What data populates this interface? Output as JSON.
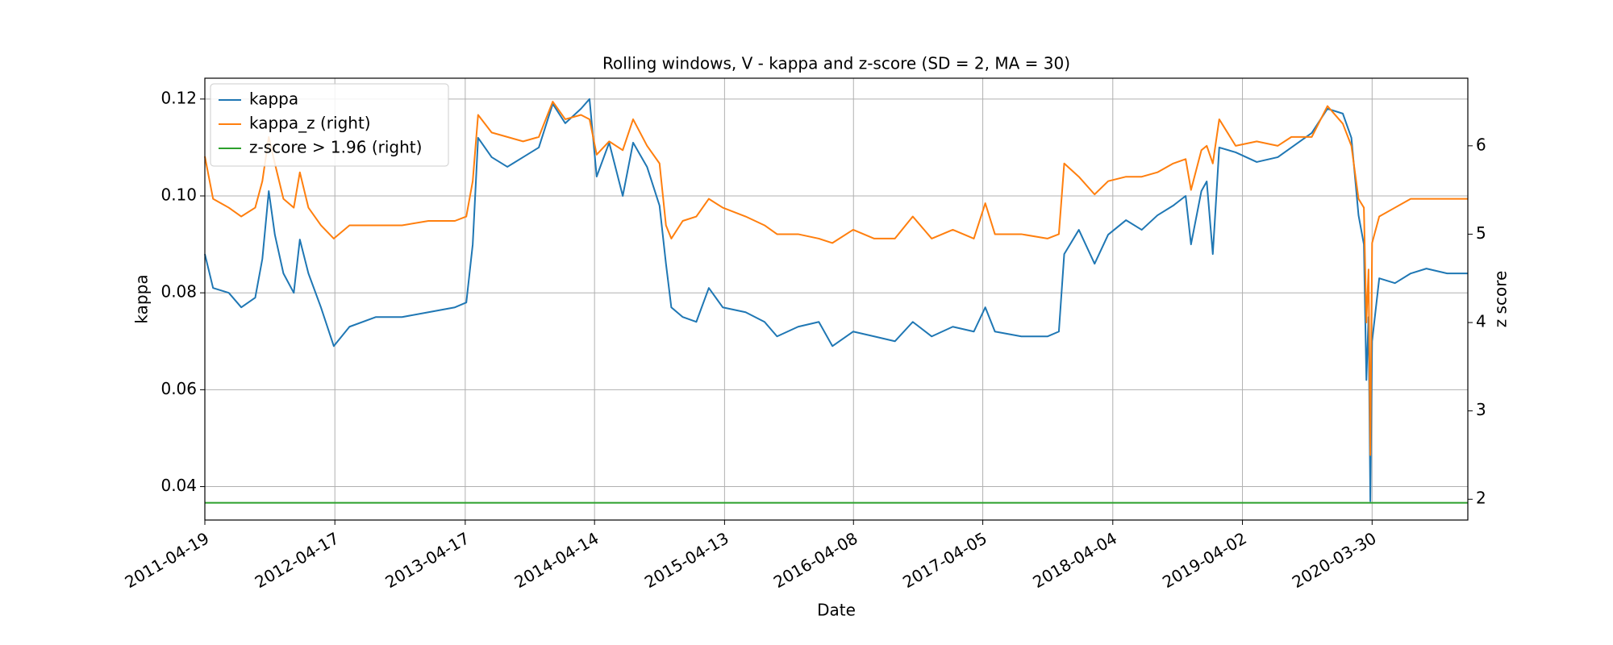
{
  "chart_data": {
    "type": "line",
    "title": "Rolling windows, V - kappa and z-score (SD = 2, MA = 30)",
    "x_label": "Date",
    "y_label": "kappa",
    "y2_label": "z score",
    "x": [
      "2011-04-19",
      "2011-05-12",
      "2011-06-25",
      "2011-07-30",
      "2011-09-07",
      "2011-09-27",
      "2011-10-15",
      "2011-11-01",
      "2011-11-25",
      "2011-12-24",
      "2012-01-10",
      "2012-02-03",
      "2012-03-09",
      "2012-04-14",
      "2012-05-28",
      "2012-08-10",
      "2012-10-22",
      "2013-01-04",
      "2013-03-19",
      "2013-04-20",
      "2013-05-08",
      "2013-05-23",
      "2013-06-30",
      "2013-08-13",
      "2013-09-26",
      "2013-11-09",
      "2013-12-18",
      "2014-01-22",
      "2014-03-07",
      "2014-03-31",
      "2014-04-20",
      "2014-05-25",
      "2014-07-02",
      "2014-07-31",
      "2014-09-08",
      "2014-10-13",
      "2014-10-31",
      "2014-11-15",
      "2014-12-17",
      "2015-01-24",
      "2015-02-28",
      "2015-04-08",
      "2015-06-11",
      "2015-08-03",
      "2015-09-07",
      "2015-11-05",
      "2016-01-02",
      "2016-02-09",
      "2016-04-07",
      "2016-06-05",
      "2016-08-02",
      "2016-09-21",
      "2016-11-13",
      "2017-01-11",
      "2017-03-11",
      "2017-04-12",
      "2017-05-09",
      "2017-07-22",
      "2017-10-03",
      "2017-11-04",
      "2017-11-19",
      "2017-12-30",
      "2018-02-12",
      "2018-03-22",
      "2018-05-11",
      "2018-06-24",
      "2018-08-07",
      "2018-09-20",
      "2018-10-25",
      "2018-11-09",
      "2018-12-08",
      "2018-12-23",
      "2019-01-09",
      "2019-01-27",
      "2019-03-14",
      "2019-05-12",
      "2019-07-10",
      "2019-08-17",
      "2019-10-13",
      "2019-11-26",
      "2020-01-08",
      "2020-02-01",
      "2020-02-21",
      "2020-03-07",
      "2020-03-14",
      "2020-03-20",
      "2020-03-25",
      "2020-03-30",
      "2020-04-19",
      "2020-06-02",
      "2020-07-16",
      "2020-08-29",
      "2020-10-26",
      "2020-12-23"
    ],
    "series": [
      {
        "name": "kappa",
        "color": "#1f77b4",
        "axis": "y",
        "values": [
          0.088,
          0.081,
          0.08,
          0.077,
          0.079,
          0.087,
          0.101,
          0.092,
          0.084,
          0.08,
          0.091,
          0.084,
          0.077,
          0.069,
          0.073,
          0.075,
          0.075,
          0.076,
          0.077,
          0.078,
          0.09,
          0.112,
          0.108,
          0.106,
          0.108,
          0.11,
          0.119,
          0.115,
          0.118,
          0.12,
          0.104,
          0.111,
          0.1,
          0.111,
          0.106,
          0.098,
          0.086,
          0.077,
          0.075,
          0.074,
          0.081,
          0.077,
          0.076,
          0.074,
          0.071,
          0.073,
          0.074,
          0.069,
          0.072,
          0.071,
          0.07,
          0.074,
          0.071,
          0.073,
          0.072,
          0.077,
          0.072,
          0.071,
          0.071,
          0.072,
          0.088,
          0.093,
          0.086,
          0.092,
          0.095,
          0.093,
          0.096,
          0.098,
          0.1,
          0.09,
          0.101,
          0.103,
          0.088,
          0.11,
          0.109,
          0.107,
          0.108,
          0.11,
          0.113,
          0.118,
          0.117,
          0.112,
          0.096,
          0.09,
          0.062,
          0.075,
          0.037,
          0.07,
          0.083,
          0.082,
          0.084,
          0.085,
          0.084,
          0.084
        ]
      },
      {
        "name": "kappa_z (right)",
        "color": "#ff7f0e",
        "axis": "y2",
        "values": [
          5.88,
          5.4,
          5.3,
          5.2,
          5.3,
          5.6,
          6.1,
          5.8,
          5.4,
          5.3,
          5.7,
          5.3,
          5.1,
          4.95,
          5.1,
          5.1,
          5.1,
          5.15,
          5.15,
          5.2,
          5.6,
          6.35,
          6.15,
          6.1,
          6.05,
          6.1,
          6.5,
          6.3,
          6.35,
          6.3,
          5.9,
          6.05,
          5.95,
          6.3,
          6.0,
          5.8,
          5.1,
          4.95,
          5.15,
          5.2,
          5.4,
          5.3,
          5.2,
          5.1,
          5.0,
          5.0,
          4.95,
          4.9,
          5.05,
          4.95,
          4.95,
          5.2,
          4.95,
          5.05,
          4.95,
          5.35,
          5.0,
          5.0,
          4.95,
          5.0,
          5.8,
          5.65,
          5.45,
          5.6,
          5.65,
          5.65,
          5.7,
          5.8,
          5.85,
          5.5,
          5.95,
          6.0,
          5.8,
          6.3,
          6.0,
          6.05,
          6.0,
          6.1,
          6.1,
          6.45,
          6.25,
          6.0,
          5.4,
          5.3,
          4.0,
          4.6,
          2.5,
          4.9,
          5.2,
          5.3,
          5.4,
          5.4,
          5.4,
          5.4
        ]
      },
      {
        "name": "z-score > 1.96 (right)",
        "color": "#2ca02c",
        "axis": "y2",
        "x": [
          "2011-04-19",
          "2020-12-23"
        ],
        "values": [
          1.96,
          1.96
        ]
      }
    ],
    "xlim": [
      "2011-04-19",
      "2020-12-23"
    ],
    "xticks": [
      "2011-04-19",
      "2012-04-17",
      "2013-04-17",
      "2014-04-14",
      "2015-04-13",
      "2016-04-08",
      "2017-04-05",
      "2018-04-04",
      "2019-04-02",
      "2020-03-30"
    ],
    "ylim": [
      0.0331,
      0.1243
    ],
    "yticks": [
      0.04,
      0.06,
      0.08,
      {
        "value": 0.1,
        "label": "0.10"
      },
      0.12
    ],
    "y2lim": [
      1.765,
      6.765
    ],
    "y2ticks": [
      2,
      3,
      4,
      5,
      6
    ],
    "grid": true,
    "legend": "upper-left"
  }
}
